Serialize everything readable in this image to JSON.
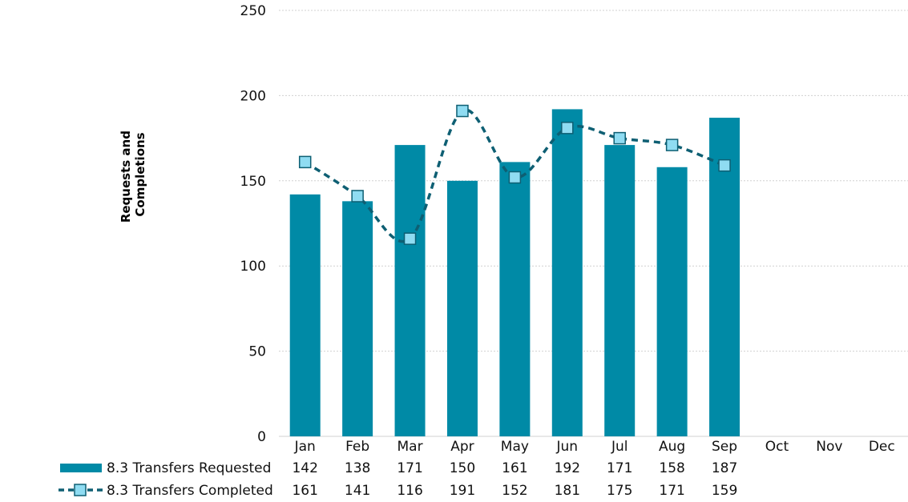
{
  "chart_data": {
    "type": "bar",
    "title": "",
    "xlabel": "",
    "ylabel_lines": [
      "Requests and",
      "Completions"
    ],
    "categories": [
      "Jan",
      "Feb",
      "Mar",
      "Apr",
      "May",
      "Jun",
      "Jul",
      "Aug",
      "Sep",
      "Oct",
      "Nov",
      "Dec"
    ],
    "ylim": [
      0,
      250
    ],
    "yticks": [
      0,
      50,
      100,
      150,
      200,
      250
    ],
    "grid": true,
    "legend_placement": "bottom-data-table",
    "series": [
      {
        "name": "8.3 Transfers Requested",
        "kind": "bar",
        "color": "#008aa6",
        "values": [
          142,
          138,
          171,
          150,
          161,
          192,
          171,
          158,
          187,
          null,
          null,
          null
        ]
      },
      {
        "name": "8.3 Transfers Completed",
        "kind": "line",
        "line_style": "dashed-smooth",
        "marker": "square",
        "color": "#0e5f73",
        "marker_fill": "#8fdcf2",
        "values": [
          161,
          141,
          116,
          191,
          152,
          181,
          175,
          171,
          159,
          null,
          null,
          null
        ]
      }
    ]
  }
}
